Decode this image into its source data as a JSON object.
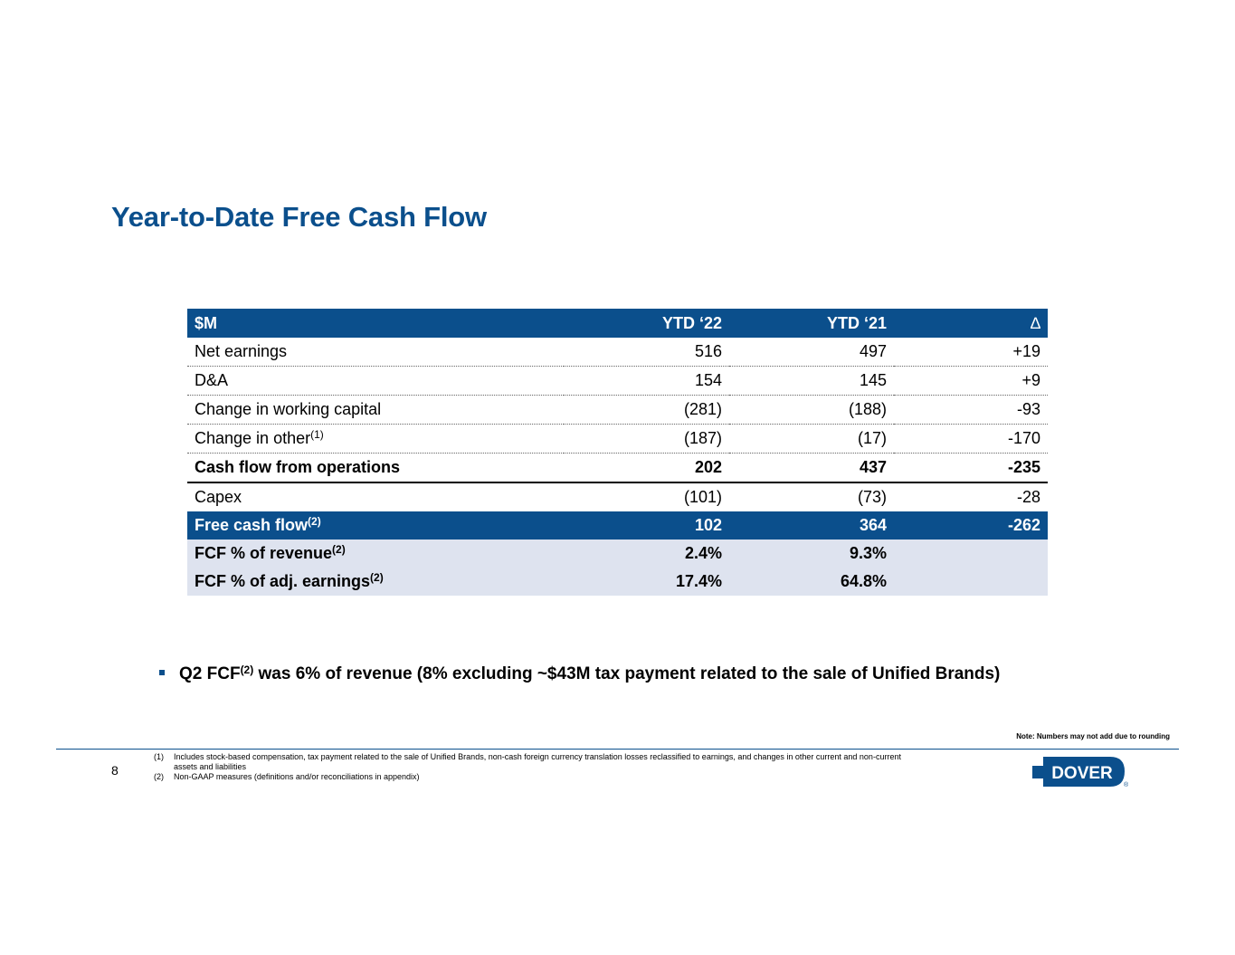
{
  "title": "Year-to-Date Free Cash Flow",
  "table": {
    "headers": [
      "$M",
      "YTD ‘22",
      "YTD ‘21",
      "∆"
    ],
    "rows": [
      {
        "label": "Net earnings",
        "sup": "",
        "ytd22": "516",
        "ytd21": "497",
        "delta": "+19"
      },
      {
        "label": "D&A",
        "sup": "",
        "ytd22": "154",
        "ytd21": "145",
        "delta": "+9"
      },
      {
        "label": "Change in working capital",
        "sup": "",
        "ytd22": "(281)",
        "ytd21": "(188)",
        "delta": "-93"
      },
      {
        "label": "Change in other",
        "sup": "(1)",
        "ytd22": "(187)",
        "ytd21": "(17)",
        "delta": "-170"
      },
      {
        "label": "Cash flow from operations",
        "sup": "",
        "ytd22": "202",
        "ytd21": "437",
        "delta": "-235"
      },
      {
        "label": "Capex",
        "sup": "",
        "ytd22": "(101)",
        "ytd21": "(73)",
        "delta": "-28"
      },
      {
        "label": "Free cash flow",
        "sup": "(2)",
        "ytd22": "102",
        "ytd21": "364",
        "delta": "-262"
      },
      {
        "label": "FCF % of revenue",
        "sup": "(2)",
        "ytd22": "2.4%",
        "ytd21": "9.3%",
        "delta": ""
      },
      {
        "label": "FCF % of adj. earnings",
        "sup": "(2)",
        "ytd22": "17.4%",
        "ytd21": "64.8%",
        "delta": ""
      }
    ]
  },
  "bullet": {
    "prefix": "Q2 FCF",
    "sup": "(2)",
    "text": " was 6% of revenue (8% excluding ~$43M tax payment related to the sale of Unified Brands)"
  },
  "note": "Note: Numbers may not add due to rounding",
  "page_number": "8",
  "footnotes": [
    {
      "num": "(1)",
      "text": "Includes stock-based compensation, tax payment related to the sale of Unified Brands, non-cash foreign currency translation losses reclassified to earnings, and changes in other current and non-current assets and liabilities"
    },
    {
      "num": "(2)",
      "text": "Non-GAAP measures (definitions and/or reconciliations in appendix)"
    }
  ],
  "logo": {
    "text": "DOVER",
    "registered": "®"
  },
  "colors": {
    "brand_blue": "#0B4F8C",
    "shade": "#DEE3EF"
  }
}
